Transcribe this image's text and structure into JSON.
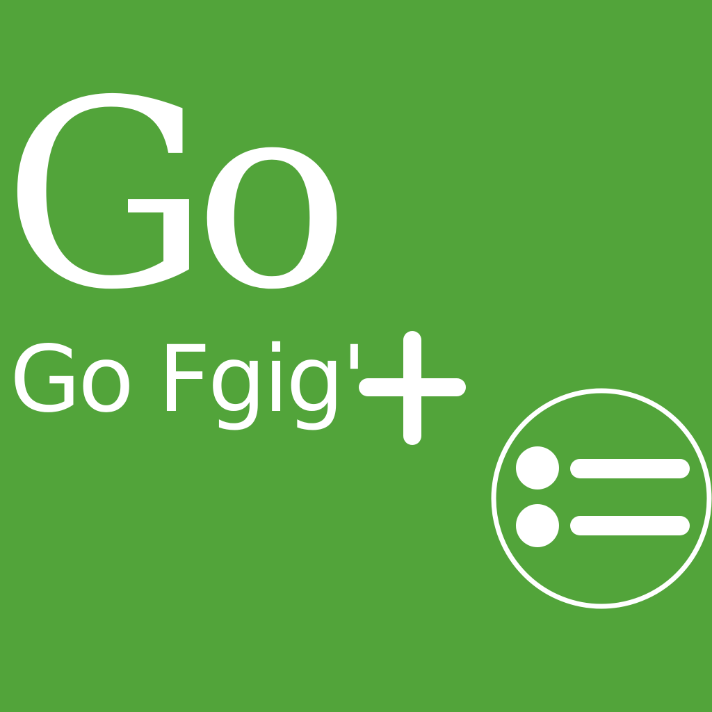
{
  "title": "Go",
  "subtitle": "Go Fgig'",
  "icons": {
    "plus": "plus-icon",
    "list": "list-in-circle-icon"
  },
  "colors": {
    "background": "#52a43a",
    "foreground": "#ffffff"
  }
}
